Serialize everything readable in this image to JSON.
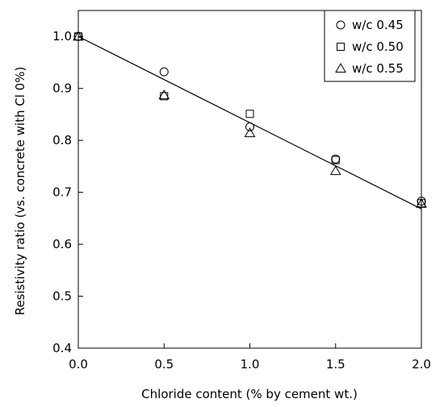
{
  "chart_data": {
    "type": "scatter",
    "title": "",
    "xlabel": "Chloride content (% by cement wt.)",
    "ylabel": "Resistivity ratio (vs. concrete with Cl 0%)",
    "xlim": [
      0.0,
      2.0
    ],
    "ylim": [
      0.4,
      1.05
    ],
    "x_ticks": [
      0.0,
      0.5,
      1.0,
      1.5,
      2.0
    ],
    "x_tick_labels": [
      "0.0",
      "0.5",
      "1.0",
      "1.5",
      "2.0"
    ],
    "y_ticks": [
      0.4,
      0.5,
      0.6,
      0.7,
      0.8,
      0.9,
      1.0
    ],
    "y_tick_labels": [
      "0.4",
      "0.5",
      "0.6",
      "0.7",
      "0.8",
      "0.9",
      "1.0"
    ],
    "grid": false,
    "legend_position": "top-right",
    "series": [
      {
        "name": "w/c 0.45",
        "marker": "circle",
        "x": [
          0.0,
          0.5,
          1.0,
          1.5,
          2.0
        ],
        "y": [
          1.0,
          0.932,
          0.826,
          0.764,
          0.683
        ]
      },
      {
        "name": "w/c 0.50",
        "marker": "square",
        "x": [
          0.0,
          0.5,
          1.0,
          1.5,
          2.0
        ],
        "y": [
          1.0,
          0.885,
          0.851,
          0.762,
          0.679
        ]
      },
      {
        "name": "w/c 0.55",
        "marker": "triangle",
        "x": [
          0.0,
          0.5,
          1.0,
          1.5,
          2.0
        ],
        "y": [
          1.0,
          0.887,
          0.814,
          0.741,
          0.678
        ]
      }
    ],
    "trendline": {
      "x": [
        0.0,
        2.0
      ],
      "y": [
        1.0,
        0.668
      ]
    }
  }
}
